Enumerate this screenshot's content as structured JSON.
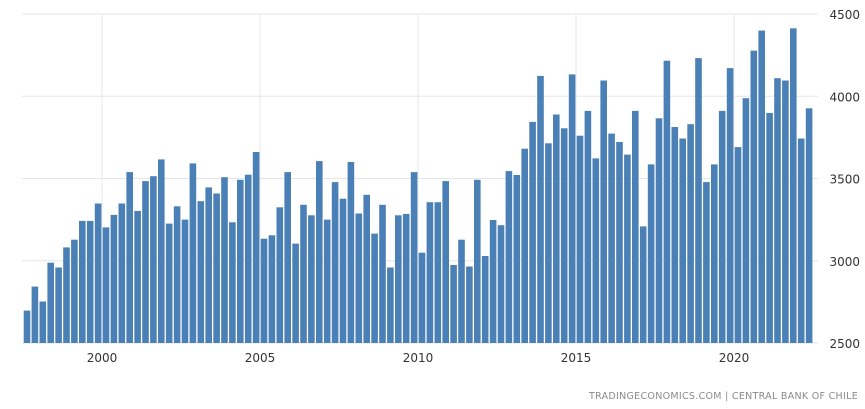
{
  "chart_data": {
    "type": "bar",
    "title": "",
    "xlabel": "",
    "ylabel": "",
    "first_period": "1997-Q3",
    "frequency": "quarterly",
    "ylim": [
      2500,
      4500
    ],
    "yticks": [
      "2500",
      "3000",
      "3500",
      "4000",
      "4500"
    ],
    "ytick_values": [
      2500,
      3000,
      3500,
      4000,
      4500
    ],
    "xticks": [
      "2000",
      "2005",
      "2010",
      "2015",
      "2020"
    ],
    "xtick_years": [
      2000,
      2005,
      2010,
      2015,
      2020
    ],
    "grid": true,
    "y_axis_side": "right",
    "bar_color": "#4a80b6",
    "values": [
      2697,
      2843,
      2752,
      2988,
      2959,
      3081,
      3128,
      3242,
      3242,
      3348,
      3203,
      3279,
      3348,
      3539,
      3303,
      3484,
      3514,
      3616,
      3226,
      3331,
      3250,
      3592,
      3362,
      3446,
      3409,
      3508,
      3234,
      3492,
      3523,
      3661,
      3134,
      3155,
      3325,
      3539,
      3104,
      3340,
      3276,
      3606,
      3250,
      3478,
      3377,
      3600,
      3287,
      3401,
      3165,
      3340,
      2959,
      3276,
      3285,
      3539,
      3049,
      3356,
      3356,
      3484,
      2974,
      3128,
      2965,
      3492,
      3029,
      3248,
      3216,
      3545,
      3521,
      3681,
      3844,
      4124,
      3714,
      3889,
      3805,
      4133,
      3760,
      3911,
      3622,
      4096,
      3773,
      3722,
      3645,
      3911,
      3209,
      3586,
      3866,
      4216,
      3813,
      3743,
      3830,
      4232,
      3478,
      3586,
      3911,
      4171,
      3691,
      3988,
      4277,
      4399,
      3899,
      4110,
      4096,
      4413,
      3743,
      3927
    ],
    "source": "TRADINGECONOMICS.COM  |  CENTRAL BANK OF CHILE"
  }
}
